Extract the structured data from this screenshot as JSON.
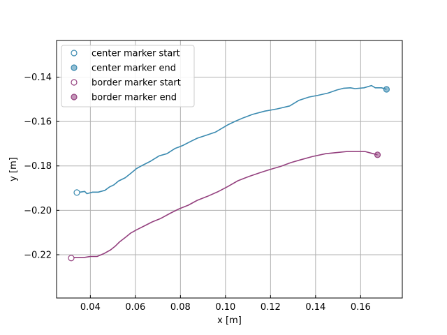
{
  "chart_data": {
    "type": "line",
    "xlabel": "x [m]",
    "ylabel": "y [m]",
    "xlim": [
      0.025,
      0.1785
    ],
    "ylim": [
      -0.2395,
      -0.1235
    ],
    "grid": true,
    "x_ticks": [
      {
        "value": 0.04,
        "label": "0.04"
      },
      {
        "value": 0.06,
        "label": "0.06"
      },
      {
        "value": 0.08,
        "label": "0.08"
      },
      {
        "value": 0.1,
        "label": "0.10"
      },
      {
        "value": 0.12,
        "label": "0.12"
      },
      {
        "value": 0.14,
        "label": "0.14"
      },
      {
        "value": 0.16,
        "label": "0.16"
      }
    ],
    "y_ticks": [
      {
        "value": -0.22,
        "label": "−0.22"
      },
      {
        "value": -0.2,
        "label": "−0.20"
      },
      {
        "value": -0.18,
        "label": "−0.18"
      },
      {
        "value": -0.16,
        "label": "−0.16"
      },
      {
        "value": -0.14,
        "label": "−0.14"
      }
    ],
    "legend_position": "upper-left",
    "legend": [
      {
        "label": "center marker start",
        "color": "#3a8ab0",
        "filled": false
      },
      {
        "label": "center marker end",
        "color": "#3a8ab0",
        "filled": true
      },
      {
        "label": "border marker start",
        "color": "#94417f",
        "filled": false
      },
      {
        "label": "border marker end",
        "color": "#94417f",
        "filled": true
      }
    ],
    "series": [
      {
        "color": "#3a8ab0",
        "start_marker": [
          0.034,
          -0.192
        ],
        "end_marker": [
          0.1715,
          -0.1455
        ],
        "points": [
          [
            0.034,
            -0.192
          ],
          [
            0.0375,
            -0.1915
          ],
          [
            0.0385,
            -0.1925
          ],
          [
            0.041,
            -0.1918
          ],
          [
            0.0435,
            -0.1918
          ],
          [
            0.0465,
            -0.191
          ],
          [
            0.0485,
            -0.1895
          ],
          [
            0.0505,
            -0.1885
          ],
          [
            0.0525,
            -0.1868
          ],
          [
            0.0555,
            -0.1853
          ],
          [
            0.058,
            -0.1833
          ],
          [
            0.0605,
            -0.1812
          ],
          [
            0.063,
            -0.1798
          ],
          [
            0.0665,
            -0.178
          ],
          [
            0.0705,
            -0.1755
          ],
          [
            0.074,
            -0.1745
          ],
          [
            0.0775,
            -0.1722
          ],
          [
            0.081,
            -0.1708
          ],
          [
            0.0845,
            -0.169
          ],
          [
            0.0875,
            -0.1675
          ],
          [
            0.0915,
            -0.1662
          ],
          [
            0.0955,
            -0.1648
          ],
          [
            0.0985,
            -0.163
          ],
          [
            0.101,
            -0.1615
          ],
          [
            0.1045,
            -0.1598
          ],
          [
            0.108,
            -0.1583
          ],
          [
            0.112,
            -0.1568
          ],
          [
            0.1175,
            -0.1553
          ],
          [
            0.123,
            -0.1543
          ],
          [
            0.1285,
            -0.153
          ],
          [
            0.1325,
            -0.1505
          ],
          [
            0.137,
            -0.149
          ],
          [
            0.141,
            -0.1482
          ],
          [
            0.1455,
            -0.1472
          ],
          [
            0.1495,
            -0.1458
          ],
          [
            0.1525,
            -0.145
          ],
          [
            0.1555,
            -0.1448
          ],
          [
            0.1575,
            -0.1452
          ],
          [
            0.1615,
            -0.1448
          ],
          [
            0.1648,
            -0.1438
          ],
          [
            0.1665,
            -0.1448
          ],
          [
            0.1693,
            -0.1448
          ],
          [
            0.1715,
            -0.1455
          ]
        ]
      },
      {
        "color": "#94417f",
        "start_marker": [
          0.0315,
          -0.2215
        ],
        "end_marker": [
          0.1675,
          -0.175
        ],
        "points": [
          [
            0.0315,
            -0.2212
          ],
          [
            0.035,
            -0.2212
          ],
          [
            0.0375,
            -0.2212
          ],
          [
            0.04,
            -0.2208
          ],
          [
            0.043,
            -0.2208
          ],
          [
            0.046,
            -0.2195
          ],
          [
            0.049,
            -0.2178
          ],
          [
            0.051,
            -0.2162
          ],
          [
            0.053,
            -0.2142
          ],
          [
            0.0555,
            -0.2122
          ],
          [
            0.058,
            -0.2102
          ],
          [
            0.0605,
            -0.2088
          ],
          [
            0.064,
            -0.207
          ],
          [
            0.0675,
            -0.2052
          ],
          [
            0.071,
            -0.2038
          ],
          [
            0.0755,
            -0.2013
          ],
          [
            0.0795,
            -0.1993
          ],
          [
            0.0835,
            -0.1977
          ],
          [
            0.0875,
            -0.1955
          ],
          [
            0.092,
            -0.1937
          ],
          [
            0.0965,
            -0.1917
          ],
          [
            0.101,
            -0.1893
          ],
          [
            0.1055,
            -0.1867
          ],
          [
            0.1105,
            -0.1847
          ],
          [
            0.1155,
            -0.183
          ],
          [
            0.1195,
            -0.1817
          ],
          [
            0.1245,
            -0.1802
          ],
          [
            0.129,
            -0.1785
          ],
          [
            0.1335,
            -0.1772
          ],
          [
            0.1385,
            -0.1758
          ],
          [
            0.1445,
            -0.1745
          ],
          [
            0.1495,
            -0.174
          ],
          [
            0.154,
            -0.1735
          ],
          [
            0.1585,
            -0.1735
          ],
          [
            0.162,
            -0.1735
          ],
          [
            0.1645,
            -0.1742
          ],
          [
            0.1675,
            -0.175
          ]
        ]
      }
    ]
  }
}
